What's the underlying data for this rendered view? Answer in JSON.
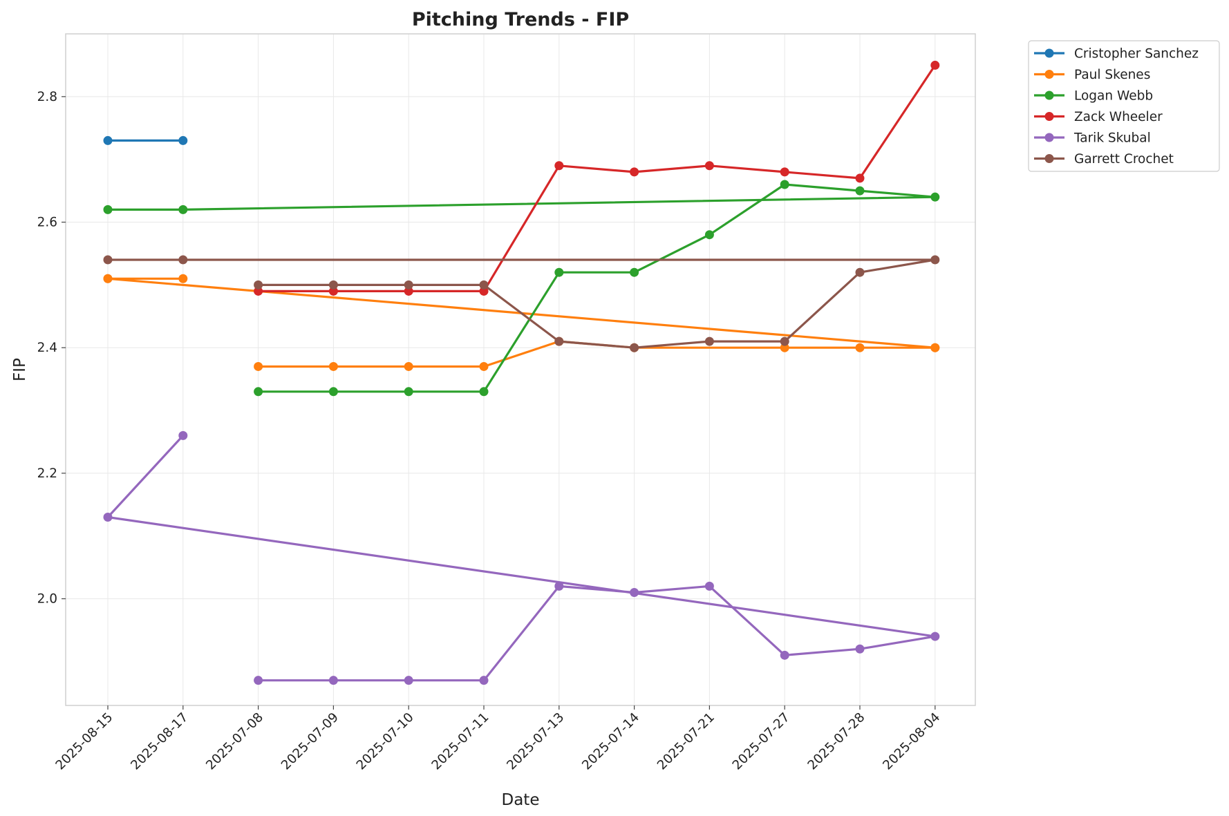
{
  "chart_data": {
    "type": "line",
    "title": "Pitching Trends - FIP",
    "xlabel": "Date",
    "ylabel": "FIP",
    "x": [
      "2025-08-15",
      "2025-08-17",
      "2025-07-08",
      "2025-07-09",
      "2025-07-10",
      "2025-07-11",
      "2025-07-13",
      "2025-07-14",
      "2025-07-21",
      "2025-07-27",
      "2025-07-28",
      "2025-08-04"
    ],
    "ylim": [
      1.83,
      2.9
    ],
    "yticks": [
      2.0,
      2.2,
      2.4,
      2.6,
      2.8
    ],
    "grid": true,
    "legend_position": "outside-top-right",
    "series": [
      {
        "name": "Cristopher Sanchez",
        "color": "#1f77b4",
        "points": [
          [
            "2025-08-15",
            2.73
          ],
          [
            "2025-08-17",
            2.73
          ]
        ]
      },
      {
        "name": "Paul Skenes",
        "color": "#ff7f0e",
        "points": [
          [
            "2025-08-15",
            2.51
          ],
          [
            "2025-08-17",
            2.51
          ],
          [
            "2025-08-15",
            2.51
          ],
          [
            "2025-08-04",
            2.4
          ],
          [
            "2025-07-27",
            2.4
          ],
          [
            "2025-07-28",
            2.4
          ],
          [
            "2025-08-04",
            2.4
          ],
          [
            "2025-07-14",
            2.4
          ],
          [
            "2025-07-13",
            2.41
          ],
          [
            "2025-07-11",
            2.37
          ],
          [
            "2025-07-10",
            2.37
          ],
          [
            "2025-07-09",
            2.37
          ],
          [
            "2025-07-08",
            2.37
          ]
        ]
      },
      {
        "name": "Logan Webb",
        "color": "#2ca02c",
        "points": [
          [
            "2025-08-15",
            2.62
          ],
          [
            "2025-08-17",
            2.62
          ],
          [
            "2025-08-04",
            2.64
          ],
          [
            "2025-07-28",
            2.65
          ],
          [
            "2025-07-27",
            2.66
          ],
          [
            "2025-07-21",
            2.58
          ],
          [
            "2025-07-14",
            2.52
          ],
          [
            "2025-07-13",
            2.52
          ],
          [
            "2025-07-11",
            2.33
          ],
          [
            "2025-07-10",
            2.33
          ],
          [
            "2025-07-09",
            2.33
          ],
          [
            "2025-07-08",
            2.33
          ]
        ]
      },
      {
        "name": "Zack Wheeler",
        "color": "#d62728",
        "points": [
          [
            "2025-07-08",
            2.49
          ],
          [
            "2025-07-09",
            2.49
          ],
          [
            "2025-07-10",
            2.49
          ],
          [
            "2025-07-11",
            2.49
          ],
          [
            "2025-07-13",
            2.69
          ],
          [
            "2025-07-14",
            2.68
          ],
          [
            "2025-07-21",
            2.69
          ],
          [
            "2025-07-27",
            2.68
          ],
          [
            "2025-07-28",
            2.67
          ],
          [
            "2025-08-04",
            2.85
          ]
        ]
      },
      {
        "name": "Tarik Skubal",
        "color": "#9467bd",
        "points": [
          [
            "2025-08-17",
            2.26
          ],
          [
            "2025-08-15",
            2.13
          ],
          [
            "2025-08-04",
            1.94
          ],
          [
            "2025-07-28",
            1.92
          ],
          [
            "2025-07-27",
            1.91
          ],
          [
            "2025-07-21",
            2.02
          ],
          [
            "2025-07-14",
            2.01
          ],
          [
            "2025-07-13",
            2.02
          ],
          [
            "2025-07-11",
            1.87
          ],
          [
            "2025-07-10",
            1.87
          ],
          [
            "2025-07-09",
            1.87
          ],
          [
            "2025-07-08",
            1.87
          ]
        ]
      },
      {
        "name": "Garrett Crochet",
        "color": "#8c564b",
        "points": [
          [
            "2025-08-15",
            2.54
          ],
          [
            "2025-08-17",
            2.54
          ],
          [
            "2025-08-04",
            2.54
          ],
          [
            "2025-07-28",
            2.52
          ],
          [
            "2025-07-27",
            2.41
          ],
          [
            "2025-07-21",
            2.41
          ],
          [
            "2025-07-14",
            2.4
          ],
          [
            "2025-07-13",
            2.41
          ],
          [
            "2025-07-11",
            2.5
          ],
          [
            "2025-07-10",
            2.5
          ],
          [
            "2025-07-09",
            2.5
          ],
          [
            "2025-07-08",
            2.5
          ]
        ]
      }
    ]
  }
}
